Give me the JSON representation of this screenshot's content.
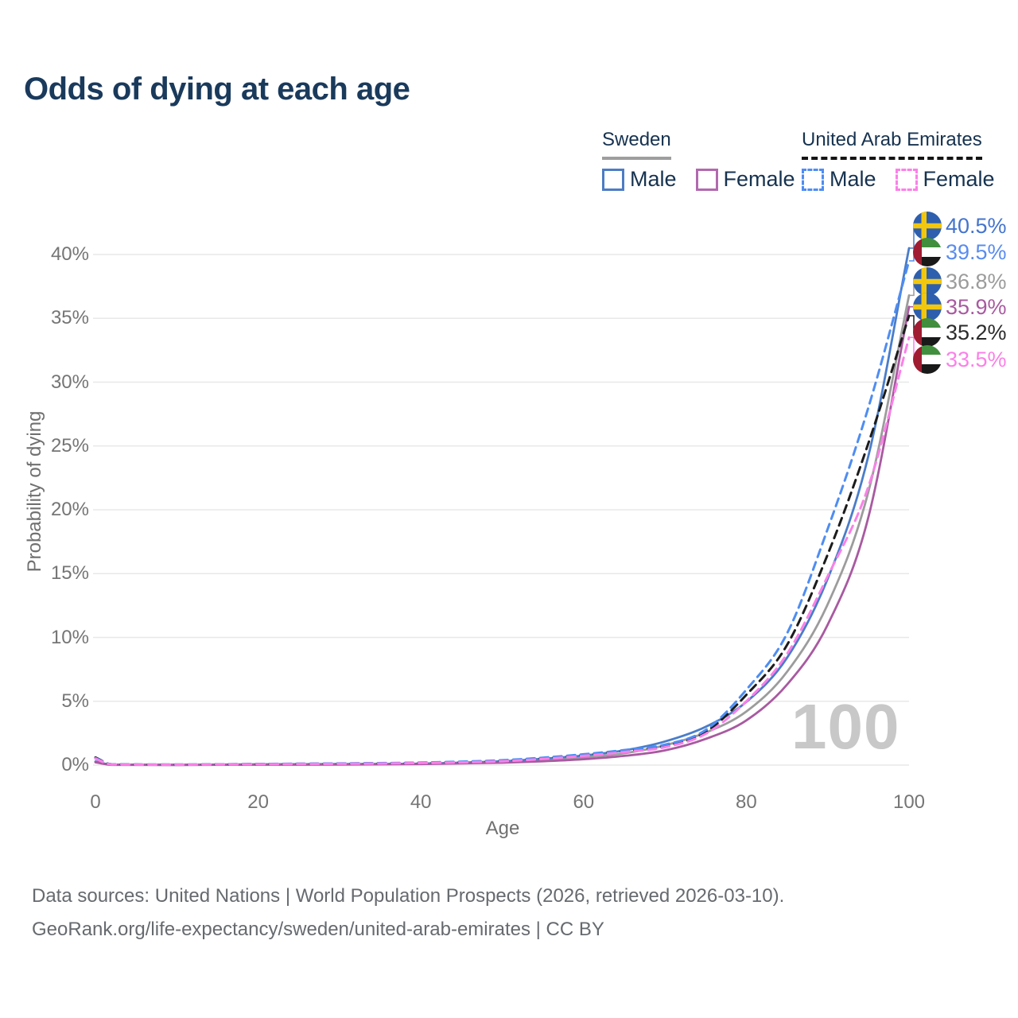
{
  "header": {
    "title": "Odds of dying at each age"
  },
  "legend": {
    "groups": [
      {
        "id": "sweden",
        "label": "Sweden",
        "line_style": "solid",
        "items": [
          {
            "label": "Male"
          },
          {
            "label": "Female"
          }
        ]
      },
      {
        "id": "united-arab-emirates",
        "label": "United Arab Emirates",
        "line_style": "dashed",
        "items": [
          {
            "label": "Male"
          },
          {
            "label": "Female"
          }
        ]
      }
    ]
  },
  "watermark": "100",
  "footer": {
    "line1": "Data sources: United Nations | World Population Prospects (2026, retrieved 2026-03-10).",
    "line2": "GeoRank.org/life-expectancy/sweden/united-arab-emirates | CC BY"
  },
  "colors": {
    "title": "#1a3a5c",
    "legend_text": "#16324f",
    "axis_text": "#757575",
    "gridline": "#e8e8e8",
    "watermark": "#c8c8c8",
    "sweden_male": "#4a7dc9",
    "sweden_female": "#a85aa0",
    "sweden_both": "#9c9c9c",
    "uae_male": "#4e8df2",
    "uae_both": "#1c1c1c",
    "uae_female": "#fb80e8"
  },
  "chart_data": {
    "type": "line",
    "title": "Odds of dying at each age",
    "xlabel": "Age",
    "ylabel": "Probability of dying",
    "x_ticks": [
      0,
      20,
      40,
      60,
      80,
      100
    ],
    "y_ticks": [
      "0%",
      "5%",
      "10%",
      "15%",
      "20%",
      "25%",
      "30%",
      "35%",
      "40%"
    ],
    "xlim": [
      0,
      100
    ],
    "ylim_percent": [
      0,
      42
    ],
    "grid": "horizontal",
    "legend_position": "top-right",
    "ages": [
      0,
      2,
      10,
      20,
      30,
      40,
      50,
      55,
      60,
      65,
      70,
      75,
      80,
      85,
      90,
      95,
      100
    ],
    "series": [
      {
        "name": "Sweden Male",
        "country": "Sweden",
        "sex": "Male",
        "style": "solid",
        "color": "#4a7dc9",
        "values_percent": [
          0.28,
          0.03,
          0.02,
          0.06,
          0.08,
          0.12,
          0.3,
          0.5,
          0.75,
          1.15,
          1.85,
          3.0,
          4.95,
          8.4,
          14.6,
          24.2,
          40.5
        ]
      },
      {
        "name": "Sweden Female",
        "country": "Sweden",
        "sex": "Female",
        "style": "solid",
        "color": "#a85aa0",
        "values_percent": [
          0.22,
          0.02,
          0.01,
          0.03,
          0.04,
          0.08,
          0.19,
          0.3,
          0.46,
          0.72,
          1.15,
          2.05,
          3.5,
          6.3,
          11.0,
          19.4,
          35.9
        ]
      },
      {
        "name": "Sweden Both sexes",
        "country": "Sweden",
        "sex": "Both",
        "style": "solid",
        "color": "#9c9c9c",
        "values_percent": [
          0.25,
          0.03,
          0.02,
          0.04,
          0.06,
          0.1,
          0.24,
          0.4,
          0.6,
          0.93,
          1.55,
          2.55,
          4.2,
          7.3,
          12.6,
          21.4,
          36.8
        ]
      },
      {
        "name": "United Arab Emirates Male",
        "country": "United Arab Emirates",
        "sex": "Male",
        "style": "dashed",
        "color": "#4e8df2",
        "values_percent": [
          0.55,
          0.06,
          0.04,
          0.09,
          0.13,
          0.2,
          0.38,
          0.58,
          0.85,
          1.18,
          1.6,
          2.75,
          5.9,
          10.3,
          18.5,
          28.0,
          39.5
        ]
      },
      {
        "name": "United Arab Emirates Both sexes",
        "country": "United Arab Emirates",
        "sex": "Both",
        "style": "dashed",
        "color": "#1c1c1c",
        "values_percent": [
          0.6,
          0.06,
          0.04,
          0.08,
          0.12,
          0.18,
          0.35,
          0.54,
          0.8,
          1.12,
          1.5,
          2.6,
          5.5,
          9.4,
          16.5,
          25.2,
          35.2
        ]
      },
      {
        "name": "United Arab Emirates Female",
        "country": "United Arab Emirates",
        "sex": "Female",
        "style": "dashed",
        "color": "#fb80e8",
        "values_percent": [
          0.5,
          0.05,
          0.03,
          0.07,
          0.1,
          0.16,
          0.3,
          0.48,
          0.72,
          1.02,
          1.4,
          2.45,
          5.0,
          8.7,
          14.8,
          21.8,
          33.5
        ]
      }
    ],
    "end_labels": [
      {
        "value": "40.5%",
        "flag": "se",
        "series": 0,
        "color": "#4474cd"
      },
      {
        "value": "39.5%",
        "flag": "ae",
        "series": 3,
        "color": "#5a8cee"
      },
      {
        "value": "36.8%",
        "flag": "se",
        "series": 2,
        "color": "#9b9b9b"
      },
      {
        "value": "35.9%",
        "flag": "se",
        "series": 1,
        "color": "#a85aa0"
      },
      {
        "value": "35.2%",
        "flag": "ae",
        "series": 4,
        "color": "#2b2b2b"
      },
      {
        "value": "33.5%",
        "flag": "ae",
        "series": 5,
        "color": "#fb80e8"
      }
    ]
  }
}
